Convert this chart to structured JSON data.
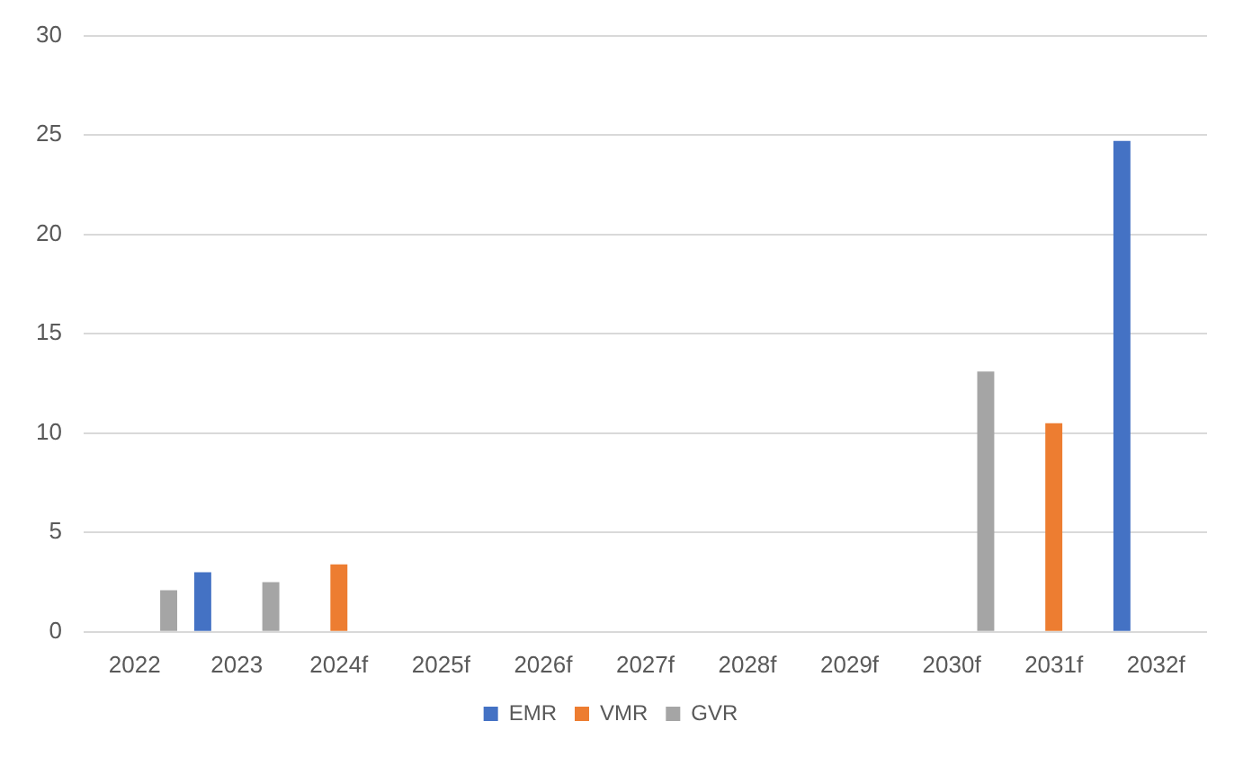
{
  "chart_data": {
    "type": "bar",
    "categories": [
      "2022",
      "2023",
      "2024f",
      "2025f",
      "2026f",
      "2027f",
      "2028f",
      "2029f",
      "2030f",
      "2031f",
      "2032f"
    ],
    "series": [
      {
        "name": "EMR",
        "color": "#4472c4",
        "values": [
          null,
          3.0,
          null,
          null,
          null,
          null,
          null,
          null,
          null,
          null,
          24.7
        ]
      },
      {
        "name": "VMR",
        "color": "#ed7d31",
        "values": [
          null,
          null,
          3.4,
          null,
          null,
          null,
          null,
          null,
          null,
          10.5,
          null
        ]
      },
      {
        "name": "GVR",
        "color": "#a5a5a5",
        "values": [
          2.1,
          2.5,
          null,
          null,
          null,
          null,
          null,
          null,
          13.1,
          null,
          null
        ]
      }
    ],
    "ylim": [
      0,
      30
    ],
    "yticks": [
      0,
      5,
      10,
      15,
      20,
      25,
      30
    ],
    "grid": "y",
    "legend": "bottom"
  }
}
